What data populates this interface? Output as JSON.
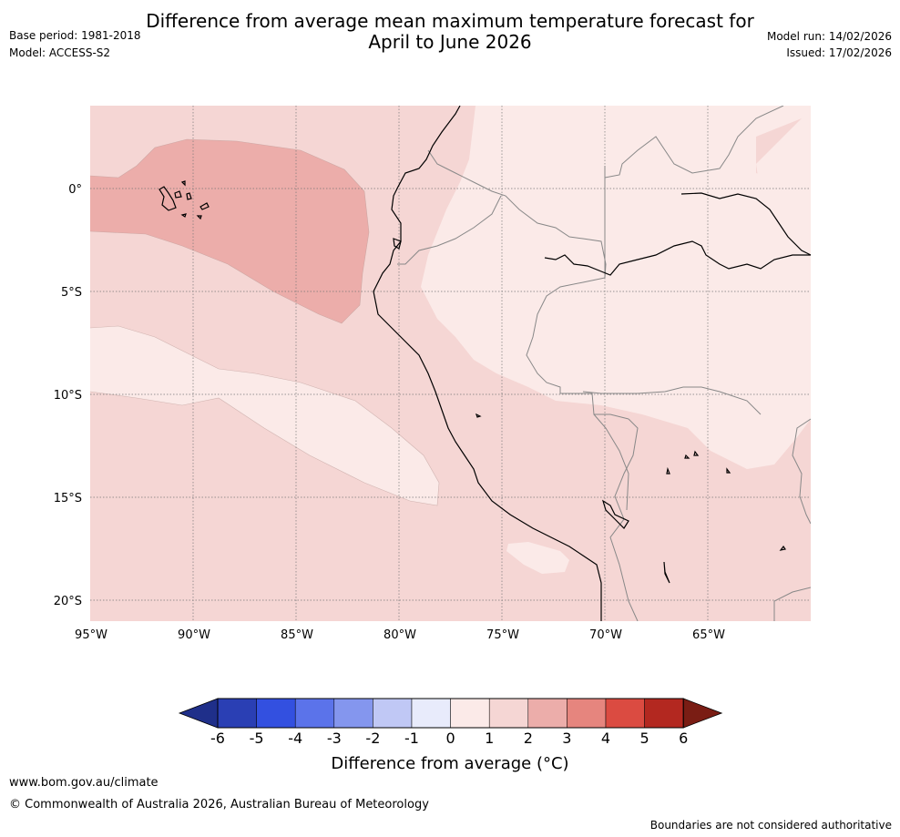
{
  "header": {
    "title_line1": "Difference from average mean maximum temperature forecast for",
    "title_line2": "April to June 2026",
    "base_period": "Base period: 1981-2018",
    "model": "Model: ACCESS-S2",
    "model_run": "Model run: 14/02/2026",
    "issued": "Issued: 17/02/2026"
  },
  "map": {
    "lat_labels": [
      "0°",
      "5°S",
      "10°S",
      "15°S",
      "20°S"
    ],
    "lon_labels": [
      "95°W",
      "90°W",
      "85°W",
      "80°W",
      "75°W",
      "70°W",
      "65°W"
    ]
  },
  "colorbar": {
    "ticks": [
      "-6",
      "-5",
      "-4",
      "-3",
      "-2",
      "-1",
      "0",
      "1",
      "2",
      "3",
      "4",
      "5",
      "6"
    ],
    "colors": [
      "#1f2f8a",
      "#2a3fb4",
      "#3350e0",
      "#5b73ea",
      "#8496ee",
      "#c0c8f5",
      "#e8ebfb",
      "#fbeae8",
      "#f5d6d4",
      "#ecadaa",
      "#e6857e",
      "#db4b41",
      "#b32820",
      "#7a1d14"
    ],
    "label": "Difference from average ($^\\circ$C)",
    "label_display": "Difference from average (°C)"
  },
  "footer": {
    "url": "www.bom.gov.au/climate",
    "copyright": "© Commonwealth of Australia 2026, Australian Bureau of Meteorology",
    "disclaimer": "Boundaries are not considered authoritative"
  }
}
